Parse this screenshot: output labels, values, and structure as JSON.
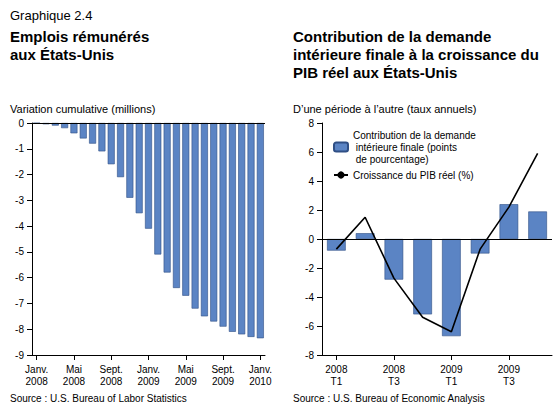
{
  "label": "Graphique 2.4",
  "chart_data": [
    {
      "type": "bar",
      "title": "Emplois rémunérés aux États-Unis",
      "subtitle": "Variation cumulative (millions)",
      "source": "Source : U.S. Bureau of Labor Statistics",
      "categories": [
        "Janv. 2008",
        null,
        null,
        null,
        "Mai 2008",
        null,
        null,
        null,
        "Sept. 2008",
        null,
        null,
        null,
        "Janv. 2009",
        null,
        null,
        null,
        "Mai 2009",
        null,
        null,
        null,
        "Sept. 2009",
        null,
        null,
        null,
        "Janv. 2010"
      ],
      "values": [
        -0.01,
        -0.05,
        -0.1,
        -0.2,
        -0.4,
        -0.6,
        -0.8,
        -1.1,
        -1.6,
        -2.1,
        -2.9,
        -3.5,
        -4.1,
        -5.1,
        -5.8,
        -6.4,
        -6.7,
        -7.2,
        -7.5,
        -7.7,
        -7.9,
        -8.1,
        -8.2,
        -8.3,
        -8.35
      ],
      "color": "#5b84c4",
      "ylim": [
        -9,
        0
      ],
      "yticks": [
        -9,
        -8,
        -7,
        -6,
        -5,
        -4,
        -3,
        -2,
        -1,
        0
      ],
      "grid": false
    },
    {
      "type": "bar",
      "title": "Contribution de la demande intérieure finale à la croissance du PIB réel aux États-Unis",
      "subtitle": "D’une période à l’autre (taux annuels)",
      "source": "Source : U.S. Bureau of Economic Analysis",
      "categories": [
        "2008 T1",
        null,
        "2008 T3",
        null,
        "2009 T1",
        null,
        "2009 T3",
        null
      ],
      "series": [
        {
          "name": "Contribution de la demande intérieure finale (points de pourcentage)",
          "type": "bar",
          "color": "#5b84c4",
          "values": [
            -0.8,
            0.4,
            -2.8,
            -5.2,
            -6.7,
            -1.0,
            2.4,
            1.9
          ]
        },
        {
          "name": "Croissance du PIB réel (%)",
          "type": "line",
          "color": "#000000",
          "values": [
            -0.7,
            1.5,
            -2.7,
            -5.4,
            -6.4,
            -0.7,
            2.2,
            5.9
          ]
        }
      ],
      "ylim": [
        -8,
        8
      ],
      "yticks": [
        -8,
        -6,
        -4,
        -2,
        0,
        2,
        4,
        6,
        8
      ],
      "legend": "upper left",
      "grid": false
    }
  ]
}
